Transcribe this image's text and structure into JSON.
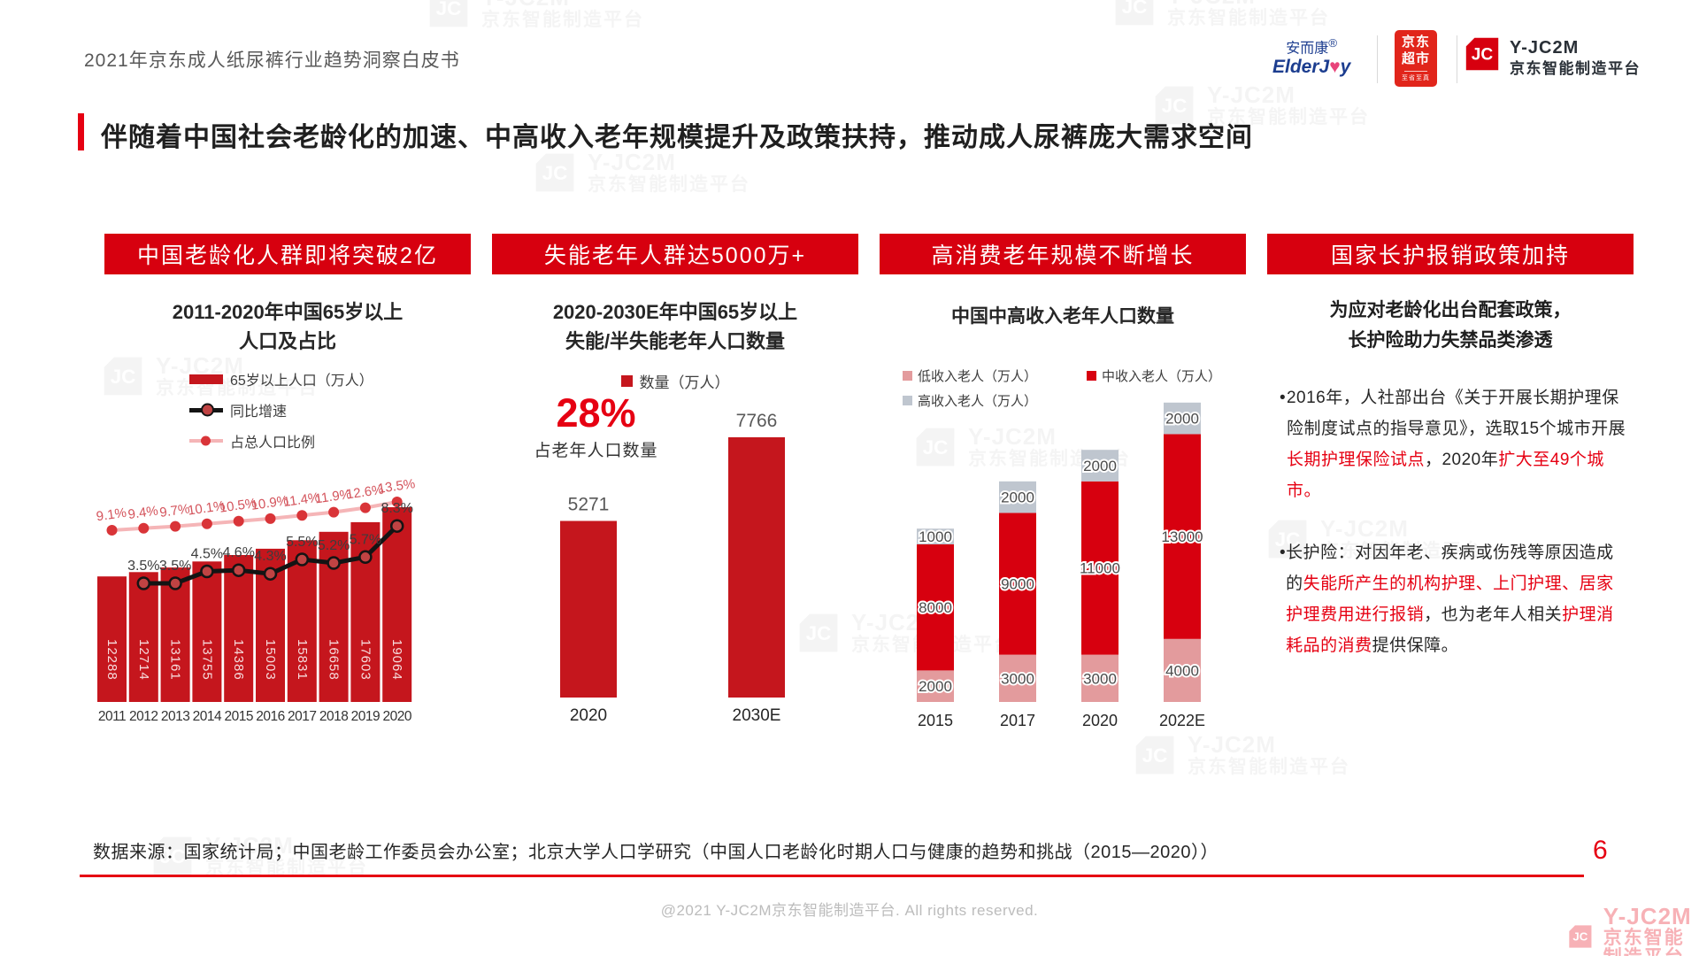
{
  "page": {
    "doc_title": "2021年京东成人纸尿裤行业趋势洞察白皮书",
    "main_title": "伴随着中国社会老龄化的加速、中高收入老年规模提升及政策扶持，推动成人尿裤庞大需求空间",
    "page_number": "6",
    "footer_source": "数据来源：国家统计局；中国老龄工作委员会办公室；北京大学人口学研究（中国人口老龄化时期人口与健康的趋势和挑战（2015—2020））",
    "copyright": "@2021 Y-JC2M京东智能制造平台. All rights reserved."
  },
  "logos": {
    "elderjoy_cn": "安而康",
    "elderjoy_reg": "®",
    "jd_line1": "京东",
    "jd_line2": "超市",
    "jd_slogan": "至省至真",
    "jc2m_name": "Y-JC2M",
    "jc2m_sub": "京东智能制造平台"
  },
  "watermark": {
    "brand": "Y-JC2M",
    "sub": "京东智能制造平台"
  },
  "sections": [
    {
      "banner": "中国老龄化人群即将突破2亿"
    },
    {
      "banner": "失能老年人群达5000万+"
    },
    {
      "banner": "高消费老年规模不断增长"
    },
    {
      "banner": "国家长护报销政策加持"
    }
  ],
  "chart_data": [
    {
      "type": "bar",
      "title": "2011-2020年中国65岁以上人口及占比",
      "title_lines": [
        "2011-2020年中国65岁以上",
        "人口及占比"
      ],
      "categories": [
        "2011",
        "2012",
        "2013",
        "2014",
        "2015",
        "2016",
        "2017",
        "2018",
        "2019",
        "2020"
      ],
      "series": [
        {
          "name": "65岁以上人口（万人）",
          "kind": "bar",
          "color": "#c5161d",
          "values": [
            12288,
            12714,
            13161,
            13755,
            14386,
            15003,
            15831,
            16658,
            17603,
            19064
          ]
        },
        {
          "name": "同比增速",
          "kind": "line",
          "color": "#141414",
          "marker_color": "#c04343",
          "unit": "%",
          "values": [
            null,
            3.5,
            3.5,
            4.5,
            4.6,
            4.3,
            5.5,
            5.2,
            5.7,
            8.3
          ]
        },
        {
          "name": "占总人口比例",
          "kind": "line",
          "color": "#f5b5b7",
          "marker_color": "#d93438",
          "unit": "%",
          "values": [
            9.1,
            9.4,
            9.7,
            10.1,
            10.5,
            10.9,
            11.4,
            11.9,
            12.6,
            13.5
          ]
        }
      ],
      "legend_position": "top",
      "grid": false
    },
    {
      "type": "bar",
      "title": "2020-2030E年中国65岁以上失能/半失能老年人口数量",
      "title_lines": [
        "2020-2030E年中国65岁以上",
        "失能/半失能老年人口数量"
      ],
      "legend": "数量（万人）",
      "categories": [
        "2020",
        "2030E"
      ],
      "values": [
        5271,
        7766
      ],
      "bar_color": "#c5161d",
      "callout": {
        "value": "28%",
        "label": "占老年人口数量",
        "color": "#e60012"
      },
      "grid": false
    },
    {
      "type": "stacked-bar",
      "title": "中国中高收入老年人口数量",
      "categories": [
        "2015",
        "2017",
        "2020",
        "2022E"
      ],
      "series": [
        {
          "name": "低收入老人（万人）",
          "color": "#e39b9d",
          "values": [
            2000,
            3000,
            3000,
            4000
          ]
        },
        {
          "name": "中收入老人（万人）",
          "color": "#d7000f",
          "values": [
            8000,
            9000,
            11000,
            13000
          ]
        },
        {
          "name": "高收入老人（万人）",
          "color": "#bfc6cf",
          "values": [
            1000,
            2000,
            2000,
            2000
          ]
        }
      ],
      "stack_order_bottom_to_top": [
        "低收入老人（万人）",
        "中收入老人（万人）",
        "高收入老人（万人）"
      ],
      "grid": false
    }
  ],
  "policy": {
    "title_line1": "为应对老龄化出台配套政策，",
    "title_line2": "长护险助力失禁品类渗透",
    "bullets": [
      {
        "segments": [
          {
            "text": "2016年，人社部出台《关于开展长期护理保险制度试点的指导意见》，选取15个城市开展",
            "red": false
          },
          {
            "text": "长期护理保险试点",
            "red": true
          },
          {
            "text": "，2020年",
            "red": false
          },
          {
            "text": "扩大至49个城市。",
            "red": true
          }
        ]
      },
      {
        "segments": [
          {
            "text": "长护险：对因年老、疾病或伤残等原因造成的",
            "red": false
          },
          {
            "text": "失能所产生的机构护理、上门护理、居家护理费用进行报销",
            "red": true
          },
          {
            "text": "，也为老年人相关",
            "red": false
          },
          {
            "text": "护理消耗品的消费",
            "red": true
          },
          {
            "text": "提供保障。",
            "red": false
          }
        ]
      }
    ]
  },
  "colors": {
    "banner_red": "#d7000f",
    "accent_red": "#e60012",
    "bar_red": "#c5161d",
    "pink_segment": "#e39b9d",
    "gray_segment": "#bfc6cf",
    "pink_line": "#f5b5b7",
    "black_line": "#141414"
  }
}
